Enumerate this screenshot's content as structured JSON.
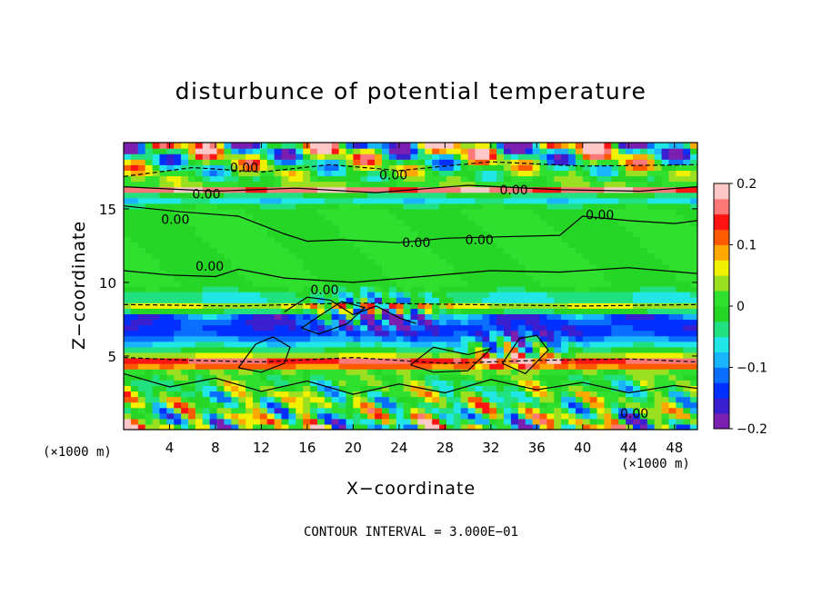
{
  "chart_data": {
    "type": "heatmap",
    "title": "disturbunce of potential temperature",
    "xlabel": "X−coordinate",
    "ylabel": "Z−coordinate",
    "x_unit_left": "(×1000 m)",
    "x_unit_right": "(×1000 m)",
    "footer": "CONTOUR INTERVAL = 3.000E−01",
    "xlim": [
      0,
      50
    ],
    "ylim": [
      0,
      19.5
    ],
    "x_ticks": [
      4,
      8,
      12,
      16,
      20,
      24,
      28,
      32,
      36,
      40,
      44,
      48
    ],
    "y_ticks": [
      5,
      10,
      15
    ],
    "contour_labels": [
      "0.00",
      "0.00",
      "0.00",
      "0.00",
      "0.00",
      "0.00",
      "0.00",
      "0.00",
      "0.00",
      "0.00",
      "0.00"
    ],
    "colorbar": {
      "min": -0.2,
      "max": 0.2,
      "tick_labels": [
        "0.2",
        "0.1",
        "0",
        "−0.1",
        "−0.2"
      ],
      "tick_values": [
        0.2,
        0.1,
        0,
        -0.1,
        -0.2
      ],
      "colors": [
        "#7a1fb0",
        "#3a1fd0",
        "#0030ff",
        "#0a6fff",
        "#19b5ff",
        "#20e6e6",
        "#20e080",
        "#26d626",
        "#2fe02f",
        "#9ae020",
        "#f0f000",
        "#ffa800",
        "#ff5a00",
        "#ff1414",
        "#ff7878",
        "#ffc8c8"
      ]
    }
  }
}
